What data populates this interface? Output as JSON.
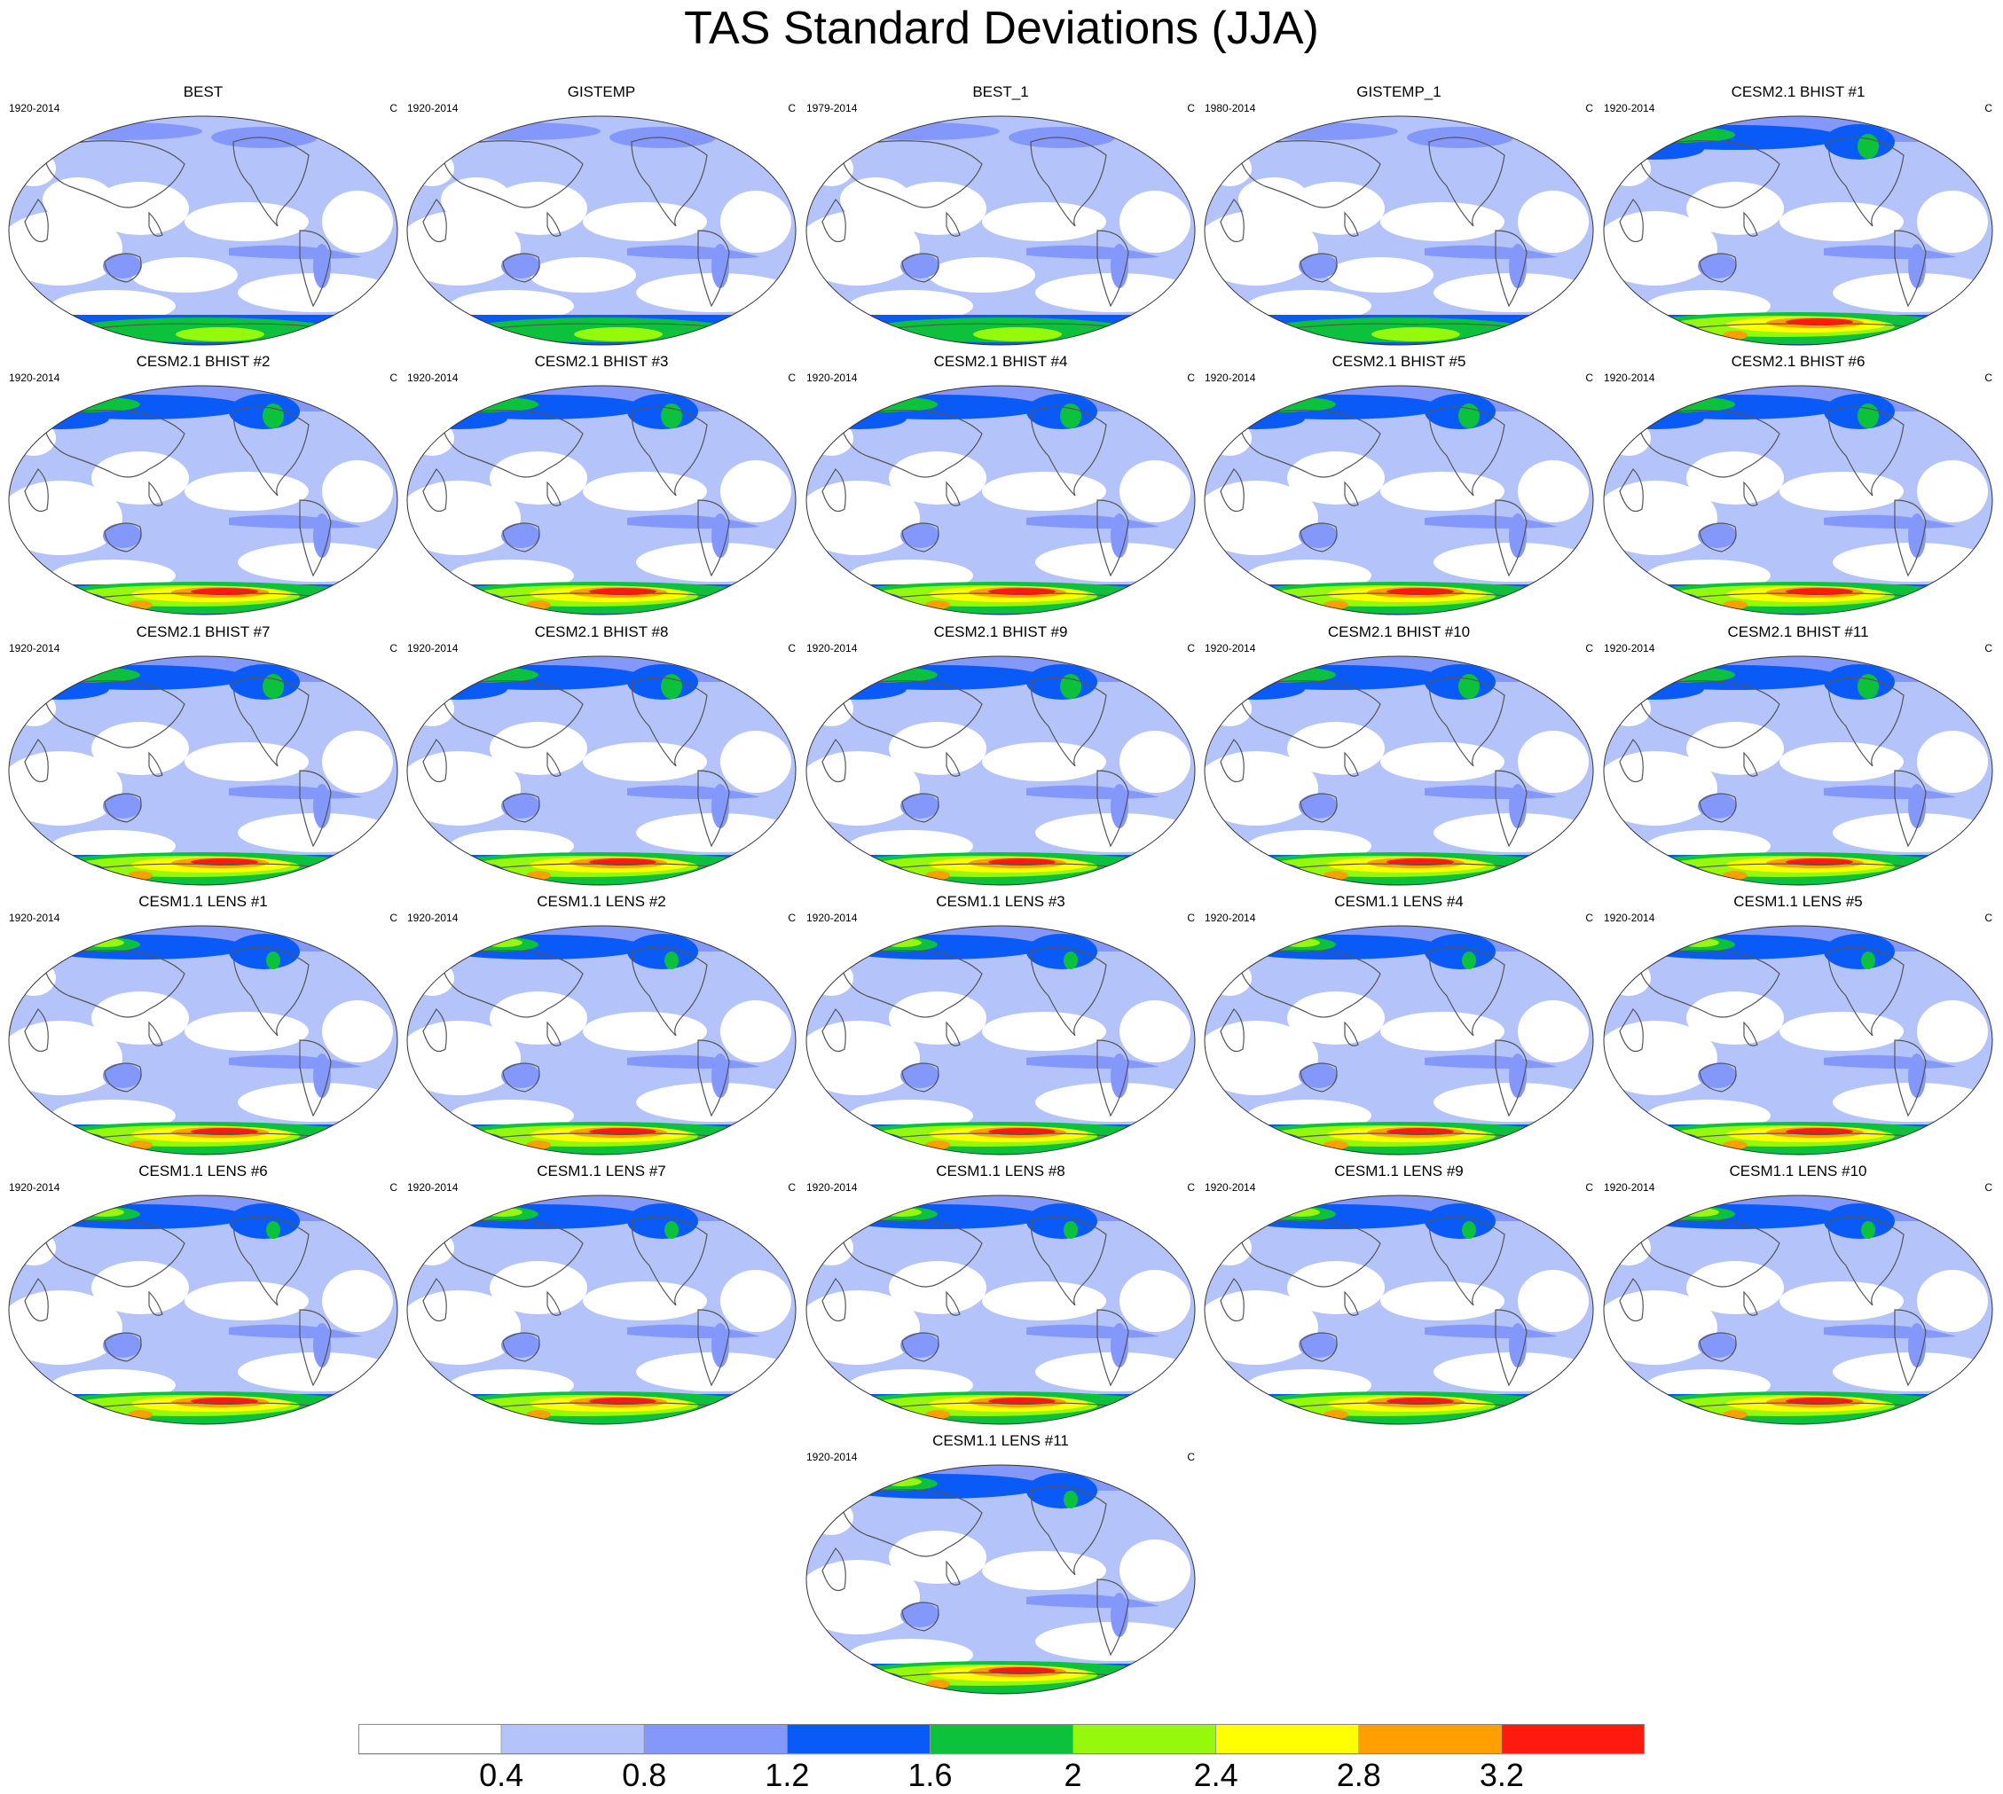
{
  "title": "TAS Standard Deviations (JJA)",
  "unit": "C",
  "panels": [
    {
      "title": "BEST",
      "years": "1920-2014",
      "kind": "obs"
    },
    {
      "title": "GISTEMP",
      "years": "1920-2014",
      "kind": "obs"
    },
    {
      "title": "BEST_1",
      "years": "1979-2014",
      "kind": "obs"
    },
    {
      "title": "GISTEMP_1",
      "years": "1980-2014",
      "kind": "obs"
    },
    {
      "title": "CESM2.1 BHIST #1",
      "years": "1920-2014",
      "kind": "cesm2"
    },
    {
      "title": "CESM2.1 BHIST #2",
      "years": "1920-2014",
      "kind": "cesm2"
    },
    {
      "title": "CESM2.1 BHIST #3",
      "years": "1920-2014",
      "kind": "cesm2"
    },
    {
      "title": "CESM2.1 BHIST #4",
      "years": "1920-2014",
      "kind": "cesm2"
    },
    {
      "title": "CESM2.1 BHIST #5",
      "years": "1920-2014",
      "kind": "cesm2"
    },
    {
      "title": "CESM2.1 BHIST #6",
      "years": "1920-2014",
      "kind": "cesm2"
    },
    {
      "title": "CESM2.1 BHIST #7",
      "years": "1920-2014",
      "kind": "cesm2"
    },
    {
      "title": "CESM2.1 BHIST #8",
      "years": "1920-2014",
      "kind": "cesm2"
    },
    {
      "title": "CESM2.1 BHIST #9",
      "years": "1920-2014",
      "kind": "cesm2"
    },
    {
      "title": "CESM2.1 BHIST #10",
      "years": "1920-2014",
      "kind": "cesm2"
    },
    {
      "title": "CESM2.1 BHIST #11",
      "years": "1920-2014",
      "kind": "cesm2"
    },
    {
      "title": "CESM1.1 LENS #1",
      "years": "1920-2014",
      "kind": "cesm1"
    },
    {
      "title": "CESM1.1 LENS #2",
      "years": "1920-2014",
      "kind": "cesm1"
    },
    {
      "title": "CESM1.1 LENS #3",
      "years": "1920-2014",
      "kind": "cesm1"
    },
    {
      "title": "CESM1.1 LENS #4",
      "years": "1920-2014",
      "kind": "cesm1"
    },
    {
      "title": "CESM1.1 LENS #5",
      "years": "1920-2014",
      "kind": "cesm1"
    },
    {
      "title": "CESM1.1 LENS #6",
      "years": "1920-2014",
      "kind": "cesm1"
    },
    {
      "title": "CESM1.1 LENS #7",
      "years": "1920-2014",
      "kind": "cesm1"
    },
    {
      "title": "CESM1.1 LENS #8",
      "years": "1920-2014",
      "kind": "cesm1"
    },
    {
      "title": "CESM1.1 LENS #9",
      "years": "1920-2014",
      "kind": "cesm1"
    },
    {
      "title": "CESM1.1 LENS #10",
      "years": "1920-2014",
      "kind": "cesm1"
    },
    {
      "title": "CESM1.1 LENS #11",
      "years": "1920-2014",
      "kind": "cesm1"
    }
  ],
  "colorbar": {
    "colors": [
      "#ffffff",
      "#b4c3fa",
      "#8497fa",
      "#0a5af8",
      "#0cc13c",
      "#96f80a",
      "#ffff00",
      "#ffa000",
      "#ff1a10"
    ],
    "labels": [
      "0.4",
      "0.8",
      "1.2",
      "1.6",
      "2",
      "2.4",
      "2.8",
      "3.2"
    ]
  }
}
